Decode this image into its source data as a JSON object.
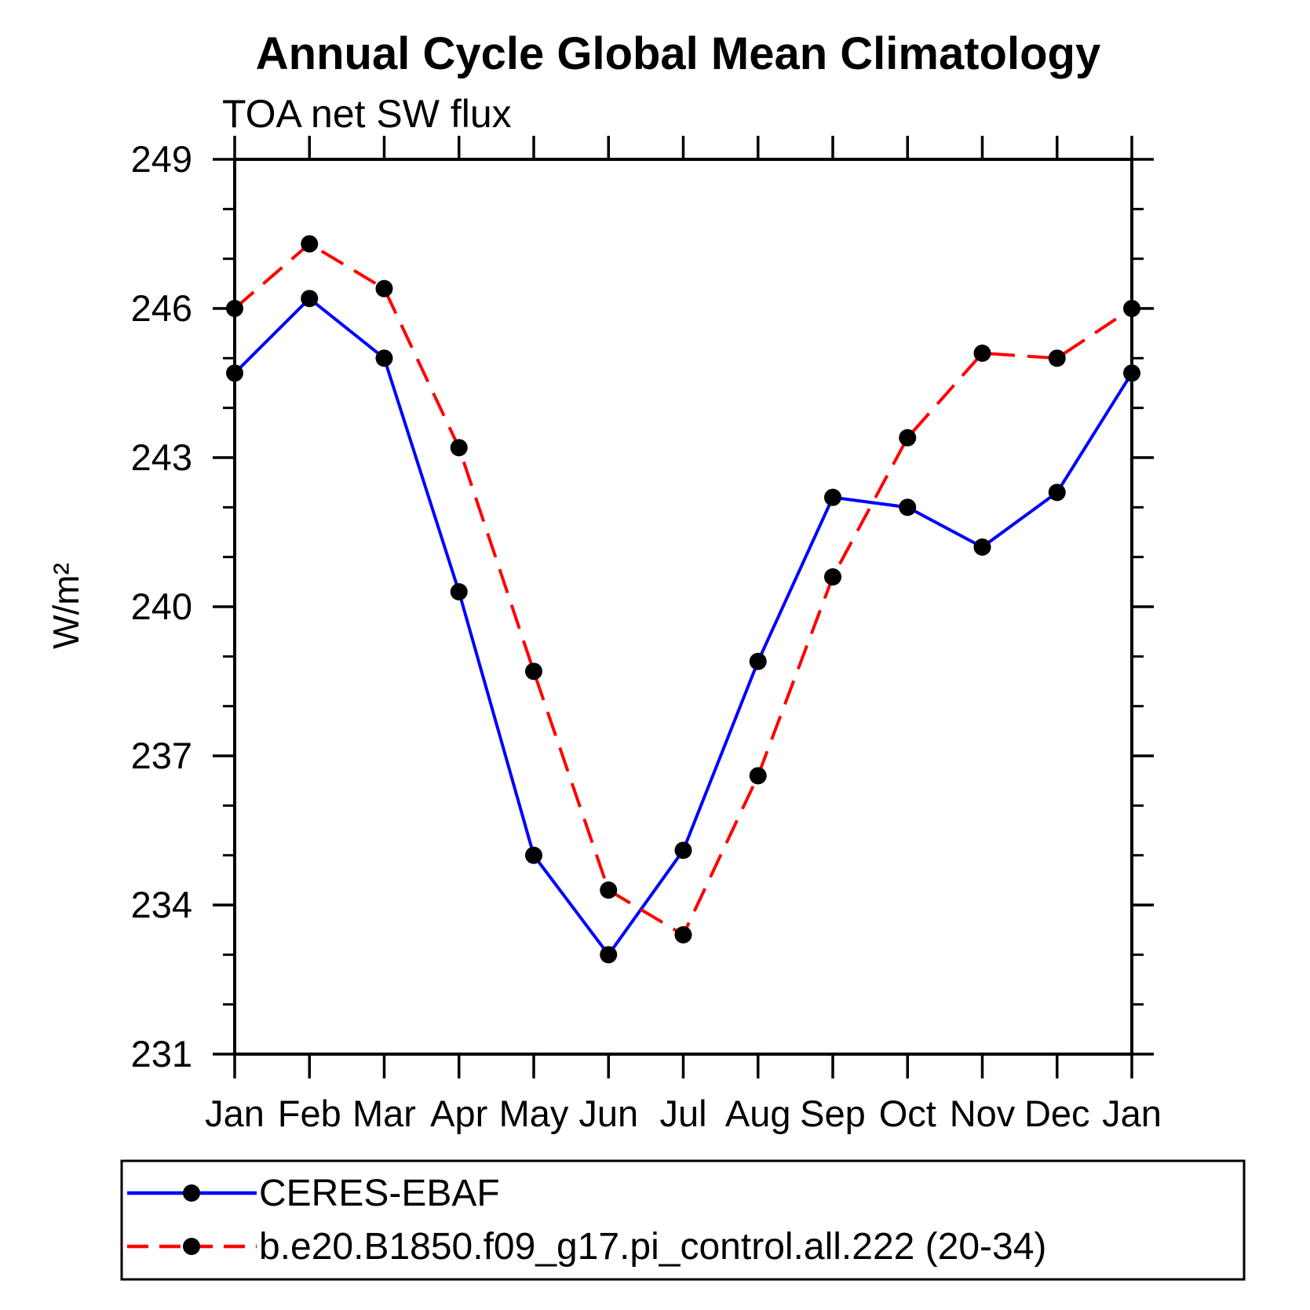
{
  "chart_data": {
    "type": "line",
    "title": "Annual Cycle Global Mean Climatology",
    "subtitle": "TOA net SW flux",
    "ylabel": "W/m²",
    "xlabel": "",
    "categories": [
      "Jan",
      "Feb",
      "Mar",
      "Apr",
      "May",
      "Jun",
      "Jul",
      "Aug",
      "Sep",
      "Oct",
      "Nov",
      "Dec",
      "Jan"
    ],
    "ylim": [
      231,
      249
    ],
    "y_ticks": [
      249,
      246,
      243,
      240,
      237,
      234,
      231
    ],
    "y_major_step": 3,
    "y_minor_step": 1,
    "grid": false,
    "legend_position": "bottom-left-box",
    "marker": "filled-circle",
    "marker_color": "#000000",
    "series": [
      {
        "name": "CERES-EBAF",
        "color": "#0000ff",
        "line_style": "solid",
        "values": [
          244.7,
          246.2,
          245.0,
          240.3,
          235.0,
          233.0,
          235.1,
          238.9,
          242.2,
          242.0,
          241.2,
          242.3,
          244.7
        ]
      },
      {
        "name": "b.e20.B1850.f09_g17.pi_control.all.222 (20-34)",
        "color": "#ff0000",
        "line_style": "dashed",
        "values": [
          246.0,
          247.3,
          246.4,
          243.2,
          238.7,
          234.3,
          233.4,
          236.6,
          240.6,
          243.4,
          245.1,
          245.0,
          246.0
        ]
      }
    ]
  },
  "colors": {
    "axis": "#000000",
    "text": "#000000",
    "background": "#ffffff"
  }
}
